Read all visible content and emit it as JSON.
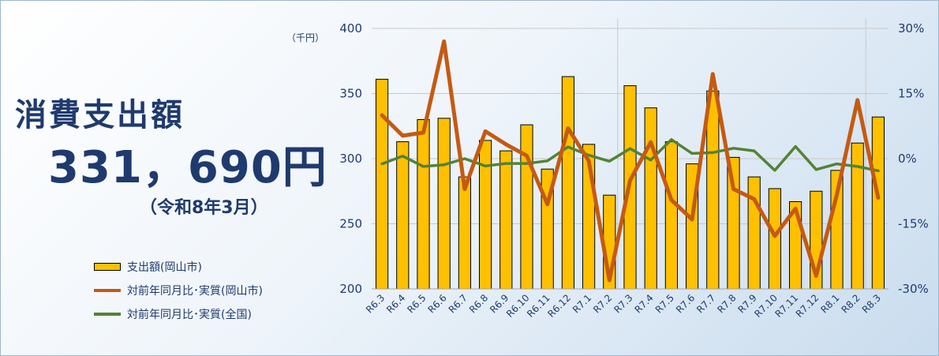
{
  "headline": "消費支出額",
  "amount": "331，690円",
  "period": "（令和8年3月）",
  "chart_data": {
    "type": "bar+line",
    "categories": [
      "R6.3",
      "R6.4",
      "R6.5",
      "R6.6",
      "R6.7",
      "R6.8",
      "R6.9",
      "R6.10",
      "R6.11",
      "R6.12",
      "R7.1",
      "R7.2",
      "R7.3",
      "R7.4",
      "R7.5",
      "R7.6",
      "R7.7",
      "R7.8",
      "R7.9",
      "R7.10",
      "R7.11",
      "R7.12",
      "R8.1",
      "R8.2",
      "R8.3"
    ],
    "y_left": {
      "unit_label": "（千円）",
      "min": 200,
      "max": 400,
      "ticks": [
        200,
        250,
        300,
        350,
        400
      ]
    },
    "y_right": {
      "min": -30,
      "max": 30,
      "ticks": [
        30,
        15,
        0,
        -15,
        -30
      ]
    },
    "right_tick_labels": [
      "30%",
      "15%",
      "0%",
      "-15%",
      "-30%"
    ],
    "bars": {
      "name": "支出額(岡山市)",
      "color": "#ffc000",
      "values": [
        361,
        313,
        330,
        331,
        286,
        314,
        306,
        326,
        292,
        363,
        311,
        272,
        356,
        339,
        313,
        296,
        352,
        301,
        286,
        277,
        267,
        275,
        291,
        312,
        332
      ]
    },
    "lines": [
      {
        "name": "対前年同月比･実質(岡山市)",
        "color": "#c55a11",
        "values": [
          10,
          5.3,
          6,
          27,
          -7,
          6.3,
          3.3,
          0.7,
          -10.5,
          7,
          -0.5,
          -28,
          -5,
          3.8,
          -9.5,
          -14,
          19.5,
          -7,
          -9.3,
          -17.8,
          -11.5,
          -27,
          -8.3,
          13.5,
          -9
        ]
      },
      {
        "name": "対前年同月比･実質(全国)",
        "color": "#548235",
        "values": [
          -1.2,
          0.6,
          -1.8,
          -1.4,
          0,
          -1.7,
          -1.1,
          -1.1,
          -0.5,
          2.7,
          0.8,
          -0.6,
          2.3,
          -0.3,
          4.4,
          1.2,
          1.4,
          2.4,
          1.8,
          -2.7,
          2.8,
          -2.5,
          -1.2,
          -1.8,
          -2.8
        ]
      }
    ],
    "gridlines": true
  }
}
